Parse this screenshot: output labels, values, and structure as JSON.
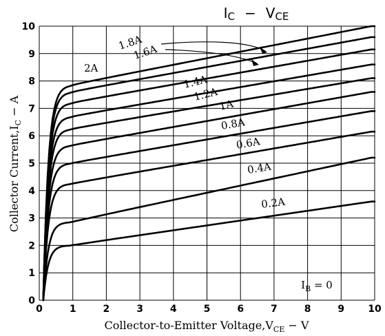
{
  "chart_data": {
    "type": "line",
    "title": "Ic − Vce",
    "title_main_1": "I",
    "title_sub_1": "C",
    "title_dash": "−",
    "title_main_2": "V",
    "title_sub_2": "CE",
    "xlabel_main": "Collector-to-Emitter Voltage,V",
    "xlabel_sub": "CE",
    "xlabel_tail": " − V",
    "ylabel_main": "Collector Current,I",
    "ylabel_sub": "C",
    "ylabel_tail": " − A",
    "xlim": [
      0,
      10
    ],
    "ylim": [
      0,
      10
    ],
    "x_ticks": [
      "0",
      "1",
      "2",
      "3",
      "4",
      "5",
      "6",
      "7",
      "8",
      "9",
      "10"
    ],
    "y_ticks": [
      "0",
      "1",
      "2",
      "3",
      "4",
      "5",
      "6",
      "7",
      "8",
      "9",
      "10"
    ],
    "grid": true,
    "ib_zero_label_main": "I",
    "ib_zero_label_sub": "B",
    "ib_zero_label_tail": " = 0",
    "series": [
      {
        "name": "0.2A",
        "knee": 2.0,
        "end": 3.6
      },
      {
        "name": "0.4A",
        "knee": 2.85,
        "end": 5.2
      },
      {
        "name": "0.6A",
        "knee": 4.25,
        "end": 6.15
      },
      {
        "name": "0.8A",
        "knee": 5.0,
        "end": 6.9
      },
      {
        "name": "1A",
        "knee": 5.65,
        "end": 7.6
      },
      {
        "name": "1.2A",
        "knee": 6.25,
        "end": 8.1
      },
      {
        "name": "1.4A",
        "knee": 6.7,
        "end": 8.6
      },
      {
        "name": "1.6A",
        "knee": 7.2,
        "end": 9.15
      },
      {
        "name": "1.8A",
        "knee": 7.6,
        "end": 9.6
      },
      {
        "name": "2A",
        "knee": 7.85,
        "end": 10.0
      }
    ]
  }
}
